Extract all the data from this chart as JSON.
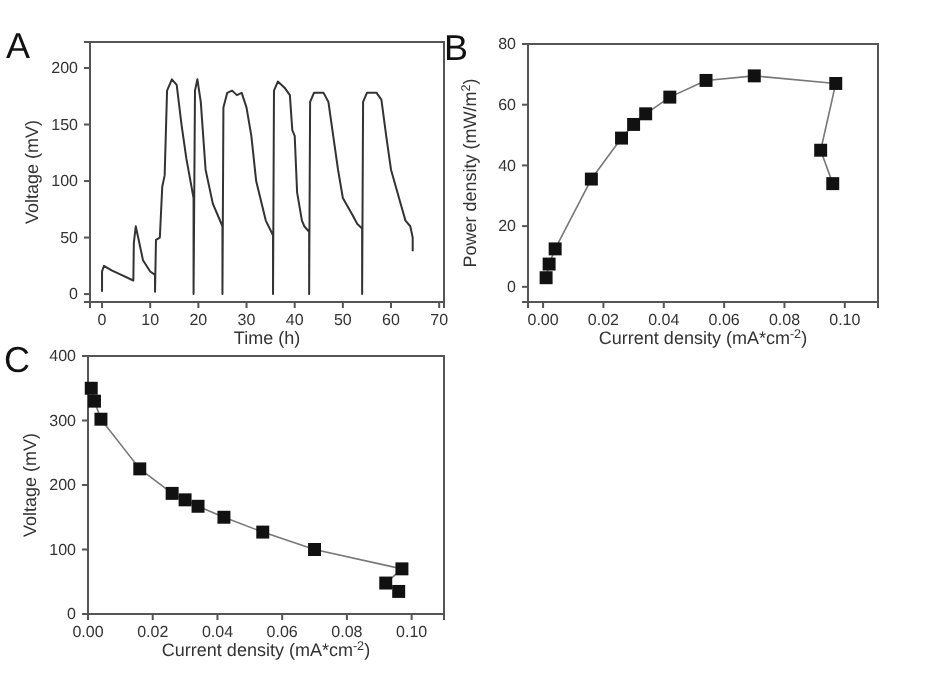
{
  "chart_data": [
    {
      "type": "line",
      "title": "A",
      "xlabel": "Time (h)",
      "ylabel": "Voltage (mV)",
      "xlim": [
        -2.5,
        71
      ],
      "ylim": [
        -7,
        223
      ],
      "xticks": [
        0,
        10,
        20,
        30,
        40,
        50,
        60,
        70
      ],
      "yticks": [
        0,
        50,
        100,
        150,
        200
      ],
      "marker": "none",
      "series": [
        {
          "color": "#333333",
          "x": [
            0,
            0,
            0.4,
            2,
            4,
            6.5,
            6.6,
            7,
            7.5,
            8.5,
            10,
            11,
            11,
            11.2,
            12,
            12.5,
            13,
            13.5,
            14.5,
            15.5,
            16.5,
            17.5,
            19,
            19,
            19.3,
            19.8,
            20.5,
            21.5,
            23,
            25,
            25,
            25.2,
            26,
            27,
            28,
            29,
            30,
            31,
            32,
            34,
            35.5,
            35.5,
            35.7,
            36.5,
            38,
            39,
            39.5,
            40,
            40.5,
            41.5,
            42,
            43,
            43,
            43.2,
            44,
            46,
            47,
            48,
            49,
            50,
            52,
            53,
            54,
            54,
            54.2,
            55,
            57,
            58,
            59,
            60,
            62,
            63,
            64,
            64.5,
            64.5
          ],
          "values": [
            2,
            20,
            25,
            21,
            17,
            12,
            45,
            60,
            50,
            30,
            20,
            17,
            2,
            48,
            50,
            95,
            105,
            180,
            190,
            185,
            150,
            120,
            85,
            0,
            180,
            190,
            170,
            110,
            80,
            60,
            0,
            165,
            178,
            180,
            176,
            178,
            165,
            140,
            100,
            65,
            52,
            0,
            180,
            188,
            182,
            176,
            145,
            140,
            90,
            65,
            60,
            55,
            0,
            170,
            178,
            178,
            170,
            140,
            110,
            85,
            70,
            62,
            58,
            0,
            170,
            178,
            178,
            172,
            140,
            110,
            80,
            65,
            60,
            50,
            38
          ]
        }
      ]
    },
    {
      "type": "line",
      "title": "B",
      "xlabel": "Current density (mA*cm$^{-2}$)",
      "ylabel": "Power density (mW/m$^{2}$)",
      "xlim": [
        -0.005,
        0.111
      ],
      "ylim": [
        -5,
        80
      ],
      "xticks": [
        {
          "value": 0,
          "label": "0.00"
        },
        {
          "value": 0.02,
          "label": "0.02"
        },
        {
          "value": 0.04,
          "label": "0.04"
        },
        {
          "value": 0.06,
          "label": "0.06"
        },
        {
          "value": 0.08,
          "label": "0.08"
        },
        {
          "value": 0.1,
          "label": "0.10"
        }
      ],
      "yticks": [
        0,
        20,
        40,
        60,
        80
      ],
      "marker": "square",
      "series": [
        {
          "color": "#111111",
          "x": [
            0.001,
            0.002,
            0.004,
            0.016,
            0.026,
            0.03,
            0.034,
            0.042,
            0.054,
            0.07,
            0.097,
            0.092,
            0.096
          ],
          "values": [
            3,
            7.5,
            12.5,
            35.5,
            49,
            53.5,
            57,
            62.5,
            68,
            69.5,
            67,
            45,
            34
          ]
        }
      ]
    },
    {
      "type": "line",
      "title": "C",
      "xlabel": "Current density (mA*cm$^{-2}$)",
      "ylabel": "Voltage (mV)",
      "xlim": [
        0,
        0.11
      ],
      "ylim": [
        0,
        400
      ],
      "xticks": [
        {
          "value": 0,
          "label": "0.00"
        },
        {
          "value": 0.02,
          "label": "0.02"
        },
        {
          "value": 0.04,
          "label": "0.04"
        },
        {
          "value": 0.06,
          "label": "0.06"
        },
        {
          "value": 0.08,
          "label": "0.08"
        },
        {
          "value": 0.1,
          "label": "0.10"
        }
      ],
      "yticks": [
        0,
        100,
        200,
        300,
        400
      ],
      "marker": "square",
      "series": [
        {
          "color": "#111111",
          "x": [
            0.001,
            0.002,
            0.004,
            0.016,
            0.026,
            0.03,
            0.034,
            0.042,
            0.054,
            0.07,
            0.097,
            0.092,
            0.096
          ],
          "values": [
            350,
            330,
            302,
            225,
            187,
            177,
            167,
            150,
            127,
            100,
            70,
            48,
            35
          ]
        }
      ]
    }
  ]
}
